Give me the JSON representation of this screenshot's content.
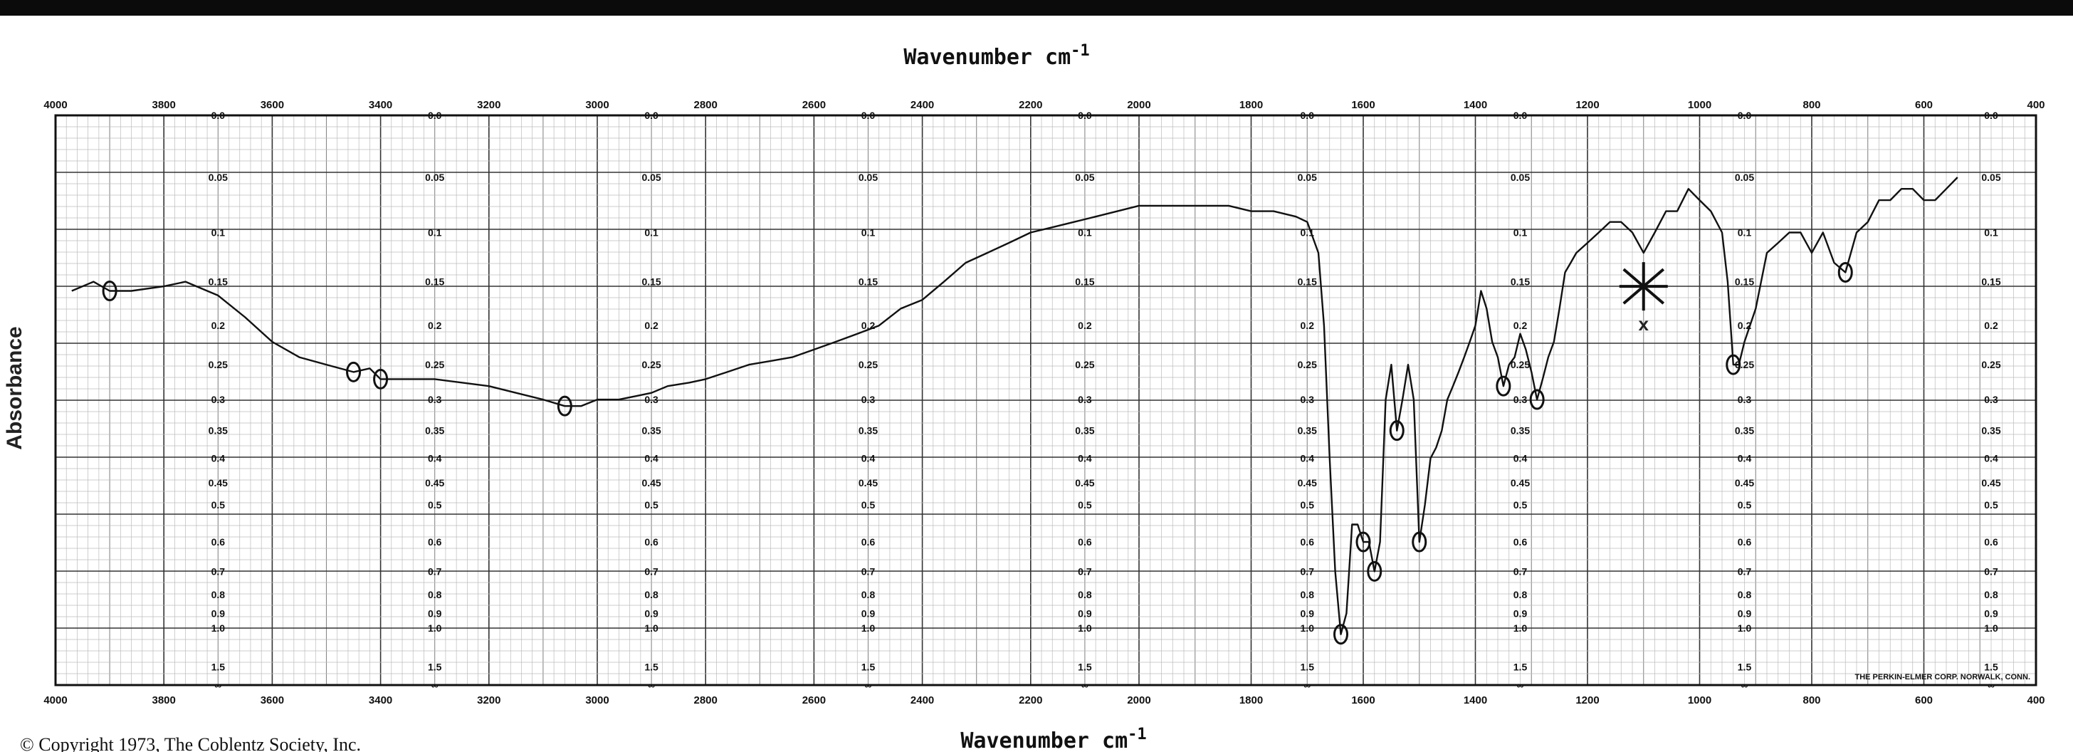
{
  "chart_data": {
    "type": "line",
    "title_top": "Wavenumber cm",
    "title_top_sup": "-1",
    "xlabel": "Wavenumber cm",
    "xlabel_sup": "-1",
    "ylabel": "Absorbance",
    "x_reversed": true,
    "xlim": [
      4000,
      400
    ],
    "x_scale_change_at": 2000,
    "x_ticks_top": [
      "4000",
      "3800",
      "3600",
      "3400",
      "3200",
      "3000",
      "2800",
      "2600",
      "2400",
      "2200",
      "2000",
      "1800",
      "1600",
      "1400",
      "1200",
      "1000",
      "800",
      "600",
      "400"
    ],
    "x_ticks_bottom": [
      "4000",
      "3800",
      "3600",
      "3400",
      "3200",
      "3000",
      "2800",
      "2600",
      "2400",
      "2200",
      "2000",
      "1800",
      "1600",
      "1400",
      "1200",
      "1000",
      "800",
      "600",
      "400"
    ],
    "y_scale": "log-transmittance (absorbance)",
    "ylim": [
      0,
      "∞"
    ],
    "y_ticks": [
      "0.0",
      "0.05",
      "0.1",
      "0.15",
      "0.2",
      "0.25",
      "0.3",
      "0.35",
      "0.4",
      "0.45",
      "0.5",
      "0.6",
      "0.7",
      "0.8",
      "0.9",
      "1.0",
      "1.5",
      "∞"
    ],
    "grid": true,
    "line_color": "#111111",
    "series": [
      {
        "x": [
          3970,
          3930,
          3900,
          3860,
          3800,
          3760,
          3720,
          3700,
          3650,
          3600,
          3550,
          3500,
          3450,
          3420,
          3400,
          3360,
          3300,
          3250,
          3200,
          3150,
          3100,
          3060,
          3030,
          3000,
          2960,
          2930,
          2900,
          2870,
          2830,
          2800,
          2760,
          2720,
          2680,
          2640,
          2600,
          2560,
          2520,
          2480,
          2440,
          2400,
          2360,
          2320,
          2280,
          2240,
          2200,
          2160,
          2120,
          2080,
          2040,
          2000,
          1960,
          1920,
          1880,
          1840,
          1800,
          1760,
          1720,
          1700,
          1680,
          1670,
          1660,
          1650,
          1640,
          1630,
          1620,
          1610,
          1600,
          1590,
          1580,
          1570,
          1560,
          1550,
          1540,
          1530,
          1520,
          1510,
          1500,
          1490,
          1480,
          1470,
          1460,
          1450,
          1440,
          1430,
          1420,
          1410,
          1400,
          1390,
          1380,
          1370,
          1360,
          1350,
          1340,
          1330,
          1320,
          1310,
          1300,
          1290,
          1280,
          1270,
          1260,
          1250,
          1240,
          1230,
          1220,
          1200,
          1180,
          1160,
          1140,
          1120,
          1100,
          1080,
          1060,
          1040,
          1020,
          1000,
          980,
          960,
          950,
          940,
          930,
          920,
          900,
          880,
          860,
          840,
          820,
          800,
          780,
          760,
          740,
          720,
          700,
          680,
          660,
          640,
          620,
          600,
          580,
          560,
          540
        ],
        "y": [
          0.16,
          0.15,
          0.16,
          0.16,
          0.155,
          0.15,
          0.16,
          0.165,
          0.19,
          0.22,
          0.24,
          0.25,
          0.26,
          0.255,
          0.27,
          0.27,
          0.27,
          0.275,
          0.28,
          0.29,
          0.3,
          0.31,
          0.31,
          0.3,
          0.3,
          0.295,
          0.29,
          0.28,
          0.275,
          0.27,
          0.26,
          0.25,
          0.245,
          0.24,
          0.23,
          0.22,
          0.21,
          0.2,
          0.18,
          0.17,
          0.15,
          0.13,
          0.12,
          0.11,
          0.1,
          0.095,
          0.09,
          0.085,
          0.08,
          0.075,
          0.075,
          0.075,
          0.075,
          0.075,
          0.08,
          0.08,
          0.085,
          0.09,
          0.12,
          0.2,
          0.4,
          0.7,
          1.05,
          0.9,
          0.55,
          0.55,
          0.6,
          0.6,
          0.7,
          0.6,
          0.3,
          0.25,
          0.35,
          0.3,
          0.25,
          0.3,
          0.6,
          0.5,
          0.4,
          0.38,
          0.35,
          0.3,
          0.28,
          0.26,
          0.24,
          0.22,
          0.2,
          0.16,
          0.18,
          0.22,
          0.24,
          0.28,
          0.25,
          0.24,
          0.21,
          0.23,
          0.26,
          0.3,
          0.27,
          0.24,
          0.22,
          0.18,
          0.14,
          0.13,
          0.12,
          0.11,
          0.1,
          0.09,
          0.09,
          0.1,
          0.12,
          0.1,
          0.08,
          0.08,
          0.06,
          0.07,
          0.08,
          0.1,
          0.15,
          0.25,
          0.25,
          0.22,
          0.18,
          0.12,
          0.11,
          0.1,
          0.1,
          0.12,
          0.1,
          0.13,
          0.14,
          0.1,
          0.09,
          0.07,
          0.07,
          0.06,
          0.06,
          0.07,
          0.07,
          0.06,
          0.05
        ]
      }
    ],
    "annotations": {
      "cross_mark_label": "x",
      "maker": "THE PERKIN-ELMER CORP. NORWALK, CONN.",
      "copyright": "© Copyright 1973, The Coblentz Society, Inc."
    }
  }
}
